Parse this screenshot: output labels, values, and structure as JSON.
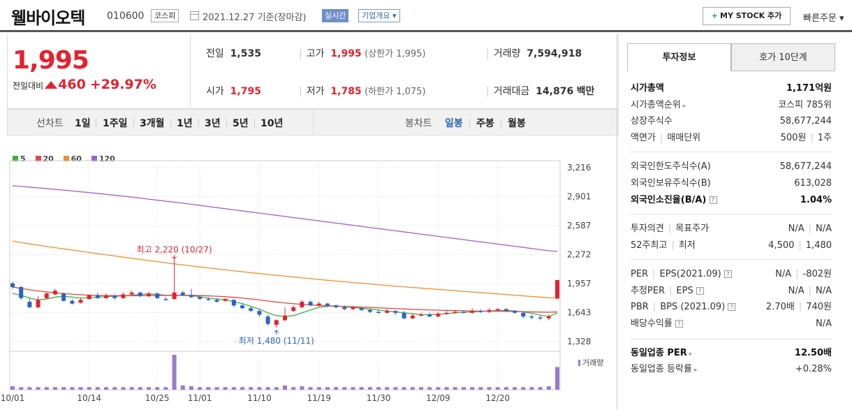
{
  "header": {
    "stock_name": "웰바이오텍",
    "stock_code": "010600",
    "market": "코스피",
    "date_text": "2021.12.27  기준(장마감)",
    "realtime_label": "실시간",
    "overview_label": "기업개요 ▾",
    "mystock_label": "MY STOCK 추가",
    "mystock_plus": "+",
    "quick_order": "빠른주문 ▾"
  },
  "price": {
    "current": "1,995",
    "change_label": "전일대비",
    "change": "460",
    "pct": "+29.97%",
    "prev_close_label": "전일",
    "prev_close": "1,535",
    "high_label": "고가",
    "high": "1,995",
    "upper_limit": "(상한가 1,995)",
    "volume_label": "거래량",
    "volume": "7,594,918",
    "open_label": "시가",
    "open": "1,795",
    "low_label": "저가",
    "low": "1,785",
    "lower_limit": "(하한가 1,075)",
    "amount_label": "거래대금",
    "amount": "14,876",
    "amount_unit": "백만"
  },
  "range_bar": {
    "line_label": "선차트",
    "line_items": [
      "1일",
      "1주일",
      "3개월",
      "1년",
      "3년",
      "5년",
      "10년"
    ],
    "candle_label": "봉차트",
    "candle_items": [
      "일봉",
      "주봉",
      "월봉"
    ],
    "candle_selected": "일봉"
  },
  "chart_data": {
    "type": "candlestick",
    "legend": [
      {
        "name": "5",
        "color": "#3fae3f"
      },
      {
        "name": "20",
        "color": "#e64545"
      },
      {
        "name": "60",
        "color": "#f0902a"
      },
      {
        "name": "120",
        "color": "#9a62c9"
      }
    ],
    "y_ticks": [
      "3,216",
      "2,901",
      "2,587",
      "2,272",
      "1,957",
      "1,643",
      "1,328"
    ],
    "x_ticks": [
      "10/01",
      "10/14",
      "10/25",
      "11/01",
      "11/10",
      "11/19",
      "11/30",
      "12/09",
      "12/20"
    ],
    "ylim": [
      1328,
      3216
    ],
    "high_annotation": "최고 2,220 (10/27)",
    "low_annotation": "최저 1,480 (11/11)",
    "volume_label": "거래량",
    "candles": [
      {
        "o": 1960,
        "c": 1920,
        "h": 1975,
        "l": 1900,
        "v": 4
      },
      {
        "o": 1920,
        "c": 1800,
        "h": 1930,
        "l": 1780,
        "v": 3
      },
      {
        "o": 1760,
        "c": 1700,
        "h": 1800,
        "l": 1690,
        "v": 3
      },
      {
        "o": 1700,
        "c": 1780,
        "h": 1820,
        "l": 1690,
        "v": 3
      },
      {
        "o": 1800,
        "c": 1850,
        "h": 1860,
        "l": 1790,
        "v": 3
      },
      {
        "o": 1840,
        "c": 1880,
        "h": 1900,
        "l": 1830,
        "v": 3
      },
      {
        "o": 1850,
        "c": 1770,
        "h": 1860,
        "l": 1760,
        "v": 3
      },
      {
        "o": 1770,
        "c": 1740,
        "h": 1790,
        "l": 1730,
        "v": 3
      },
      {
        "o": 1750,
        "c": 1780,
        "h": 1800,
        "l": 1740,
        "v": 3
      },
      {
        "o": 1790,
        "c": 1830,
        "h": 1840,
        "l": 1780,
        "v": 3
      },
      {
        "o": 1830,
        "c": 1800,
        "h": 1860,
        "l": 1790,
        "v": 3
      },
      {
        "o": 1800,
        "c": 1830,
        "h": 1850,
        "l": 1790,
        "v": 3
      },
      {
        "o": 1820,
        "c": 1800,
        "h": 1840,
        "l": 1780,
        "v": 3
      },
      {
        "o": 1800,
        "c": 1840,
        "h": 1860,
        "l": 1790,
        "v": 3
      },
      {
        "o": 1840,
        "c": 1860,
        "h": 1880,
        "l": 1830,
        "v": 3
      },
      {
        "o": 1860,
        "c": 1820,
        "h": 1870,
        "l": 1810,
        "v": 3
      },
      {
        "o": 1820,
        "c": 1850,
        "h": 1870,
        "l": 1810,
        "v": 3
      },
      {
        "o": 1850,
        "c": 1800,
        "h": 1860,
        "l": 1790,
        "v": 3
      },
      {
        "o": 1790,
        "c": 1780,
        "h": 1810,
        "l": 1770,
        "v": 3
      },
      {
        "o": 1790,
        "c": 1860,
        "h": 2220,
        "l": 1780,
        "v": 40
      },
      {
        "o": 1860,
        "c": 1830,
        "h": 1880,
        "l": 1820,
        "v": 5
      },
      {
        "o": 1830,
        "c": 1810,
        "h": 1900,
        "l": 1800,
        "v": 4
      },
      {
        "o": 1810,
        "c": 1790,
        "h": 1830,
        "l": 1780,
        "v": 3
      },
      {
        "o": 1790,
        "c": 1780,
        "h": 1810,
        "l": 1770,
        "v": 3
      },
      {
        "o": 1780,
        "c": 1760,
        "h": 1800,
        "l": 1750,
        "v": 3
      },
      {
        "o": 1770,
        "c": 1790,
        "h": 1800,
        "l": 1760,
        "v": 3
      },
      {
        "o": 1780,
        "c": 1720,
        "h": 1790,
        "l": 1700,
        "v": 3
      },
      {
        "o": 1720,
        "c": 1690,
        "h": 1740,
        "l": 1680,
        "v": 3
      },
      {
        "o": 1690,
        "c": 1660,
        "h": 1710,
        "l": 1650,
        "v": 3
      },
      {
        "o": 1660,
        "c": 1620,
        "h": 1680,
        "l": 1600,
        "v": 3
      },
      {
        "o": 1600,
        "c": 1520,
        "h": 1620,
        "l": 1500,
        "v": 3
      },
      {
        "o": 1510,
        "c": 1560,
        "h": 1570,
        "l": 1480,
        "v": 3
      },
      {
        "o": 1560,
        "c": 1610,
        "h": 1700,
        "l": 1550,
        "v": 5
      },
      {
        "o": 1660,
        "c": 1700,
        "h": 1720,
        "l": 1650,
        "v": 3
      },
      {
        "o": 1700,
        "c": 1760,
        "h": 1780,
        "l": 1690,
        "v": 4
      },
      {
        "o": 1760,
        "c": 1720,
        "h": 1770,
        "l": 1710,
        "v": 3
      },
      {
        "o": 1720,
        "c": 1740,
        "h": 1760,
        "l": 1710,
        "v": 3
      },
      {
        "o": 1740,
        "c": 1720,
        "h": 1750,
        "l": 1700,
        "v": 3
      },
      {
        "o": 1720,
        "c": 1700,
        "h": 1730,
        "l": 1690,
        "v": 3
      },
      {
        "o": 1700,
        "c": 1680,
        "h": 1720,
        "l": 1670,
        "v": 3
      },
      {
        "o": 1680,
        "c": 1700,
        "h": 1710,
        "l": 1670,
        "v": 3
      },
      {
        "o": 1690,
        "c": 1670,
        "h": 1700,
        "l": 1660,
        "v": 3
      },
      {
        "o": 1670,
        "c": 1650,
        "h": 1690,
        "l": 1640,
        "v": 3
      },
      {
        "o": 1650,
        "c": 1640,
        "h": 1670,
        "l": 1630,
        "v": 3
      },
      {
        "o": 1640,
        "c": 1660,
        "h": 1680,
        "l": 1630,
        "v": 3
      },
      {
        "o": 1660,
        "c": 1640,
        "h": 1670,
        "l": 1620,
        "v": 3
      },
      {
        "o": 1640,
        "c": 1580,
        "h": 1660,
        "l": 1570,
        "v": 3
      },
      {
        "o": 1580,
        "c": 1610,
        "h": 1630,
        "l": 1570,
        "v": 3
      },
      {
        "o": 1610,
        "c": 1620,
        "h": 1640,
        "l": 1600,
        "v": 3
      },
      {
        "o": 1620,
        "c": 1600,
        "h": 1640,
        "l": 1590,
        "v": 3
      },
      {
        "o": 1600,
        "c": 1630,
        "h": 1650,
        "l": 1590,
        "v": 3
      },
      {
        "o": 1630,
        "c": 1640,
        "h": 1660,
        "l": 1620,
        "v": 3
      },
      {
        "o": 1640,
        "c": 1650,
        "h": 1670,
        "l": 1630,
        "v": 3
      },
      {
        "o": 1650,
        "c": 1640,
        "h": 1670,
        "l": 1630,
        "v": 3
      },
      {
        "o": 1640,
        "c": 1660,
        "h": 1690,
        "l": 1630,
        "v": 3
      },
      {
        "o": 1660,
        "c": 1650,
        "h": 1680,
        "l": 1640,
        "v": 3
      },
      {
        "o": 1650,
        "c": 1670,
        "h": 1690,
        "l": 1640,
        "v": 3
      },
      {
        "o": 1670,
        "c": 1680,
        "h": 1690,
        "l": 1660,
        "v": 3
      },
      {
        "o": 1680,
        "c": 1660,
        "h": 1690,
        "l": 1650,
        "v": 3
      },
      {
        "o": 1660,
        "c": 1640,
        "h": 1670,
        "l": 1630,
        "v": 3
      },
      {
        "o": 1640,
        "c": 1600,
        "h": 1650,
        "l": 1580,
        "v": 3
      },
      {
        "o": 1600,
        "c": 1590,
        "h": 1620,
        "l": 1570,
        "v": 3
      },
      {
        "o": 1590,
        "c": 1580,
        "h": 1610,
        "l": 1560,
        "v": 3
      },
      {
        "o": 1580,
        "c": 1600,
        "h": 1620,
        "l": 1560,
        "v": 4
      },
      {
        "o": 1795,
        "c": 1995,
        "h": 1995,
        "l": 1785,
        "v": 26
      }
    ],
    "ma": {
      "5": [
        1850,
        1830,
        1800,
        1780,
        1790,
        1810,
        1820,
        1810,
        1800,
        1805,
        1810,
        1815,
        1820,
        1825,
        1830,
        1840,
        1845,
        1840,
        1830,
        1830,
        1830,
        1825,
        1815,
        1800,
        1790,
        1780,
        1760,
        1740,
        1710,
        1680,
        1640,
        1610,
        1600,
        1610,
        1640,
        1670,
        1700,
        1710,
        1715,
        1705,
        1700,
        1690,
        1680,
        1670,
        1660,
        1650,
        1640,
        1630,
        1620,
        1620,
        1625,
        1630,
        1640,
        1645,
        1650,
        1655,
        1660,
        1665,
        1665,
        1660,
        1650,
        1635,
        1615,
        1600,
        1640
      ],
      "20": [
        1920,
        1905,
        1890,
        1878,
        1866,
        1857,
        1849,
        1842,
        1836,
        1832,
        1829,
        1827,
        1826,
        1825,
        1825,
        1826,
        1827,
        1828,
        1829,
        1830,
        1830,
        1830,
        1828,
        1824,
        1820,
        1815,
        1808,
        1800,
        1790,
        1780,
        1768,
        1757,
        1747,
        1739,
        1732,
        1726,
        1720,
        1716,
        1712,
        1709,
        1706,
        1702,
        1698,
        1694,
        1690,
        1686,
        1682,
        1678,
        1674,
        1671,
        1668,
        1666,
        1664,
        1662,
        1660,
        1659,
        1658,
        1657,
        1656,
        1654,
        1652,
        1650,
        1648,
        1646,
        1650
      ],
      "60": [
        2420,
        2403,
        2388,
        2374,
        2360,
        2347,
        2334,
        2321,
        2308,
        2295,
        2282,
        2270,
        2257,
        2244,
        2232,
        2220,
        2207,
        2195,
        2183,
        2171,
        2160,
        2149,
        2138,
        2127,
        2116,
        2106,
        2096,
        2086,
        2076,
        2066,
        2056,
        2047,
        2038,
        2029,
        2020,
        2011,
        2002,
        1993,
        1985,
        1977,
        1969,
        1961,
        1953,
        1945,
        1937,
        1929,
        1922,
        1915,
        1908,
        1901,
        1894,
        1887,
        1880,
        1873,
        1866,
        1859,
        1852,
        1845,
        1838,
        1831,
        1824,
        1817,
        1810,
        1803,
        1800
      ],
      "120": [
        3020,
        3012,
        3004,
        2996,
        2988,
        2980,
        2972,
        2963,
        2954,
        2945,
        2936,
        2926,
        2916,
        2906,
        2896,
        2885,
        2874,
        2863,
        2852,
        2841,
        2830,
        2818,
        2806,
        2794,
        2782,
        2770,
        2758,
        2746,
        2734,
        2722,
        2710,
        2698,
        2686,
        2674,
        2662,
        2650,
        2638,
        2626,
        2614,
        2602,
        2590,
        2578,
        2566,
        2554,
        2542,
        2530,
        2518,
        2506,
        2494,
        2482,
        2470,
        2458,
        2446,
        2434,
        2422,
        2410,
        2398,
        2386,
        2374,
        2362,
        2350,
        2338,
        2326,
        2314,
        2305
      ]
    }
  },
  "right_panel": {
    "tab_active": "투자정보",
    "tab_inactive": "호가 10단계",
    "rows": {
      "market_cap_k": "시가총액",
      "market_cap_v": "1,171억원",
      "market_cap_rank_k": "시가총액순위",
      "market_cap_rank_v": "코스피 785위",
      "shares_k": "상장주식수",
      "shares_v": "58,677,244",
      "par_k": "액면가",
      "par_k2": "매매단위",
      "par_v": "500원",
      "par_v2": "1주",
      "foreign_limit_k": "외국인한도주식수(A)",
      "foreign_limit_v": "58,677,244",
      "foreign_hold_k": "외국인보유주식수(B)",
      "foreign_hold_v": "613,028",
      "foreign_ratio_k": "외국인소진율(B/A)",
      "foreign_ratio_v": "1.04%",
      "opinion_k": "투자의견",
      "opinion_k2": "목표주가",
      "opinion_v": "N/A",
      "opinion_v2": "N/A",
      "w52_k": "52주최고",
      "w52_k2": "최저",
      "w52_v": "4,500",
      "w52_v2": "1,480",
      "per_k": "PER",
      "per_k2": "EPS(2021.09)",
      "per_v": "N/A",
      "per_v2": "-802원",
      "eper_k": "추정PER",
      "eper_k2": "EPS",
      "eper_v": "N/A",
      "eper_v2": "N/A",
      "pbr_k": "PBR",
      "pbr_k2": "BPS (2021.09)",
      "pbr_v": "2.70배",
      "pbr_v2": "740원",
      "div_k": "배당수익률",
      "div_v": "N/A",
      "ind_per_k": "동일업종 PER",
      "ind_per_v": "12.50배",
      "ind_chg_k": "동일업종 등락률",
      "ind_chg_v": "+0.28%"
    }
  }
}
